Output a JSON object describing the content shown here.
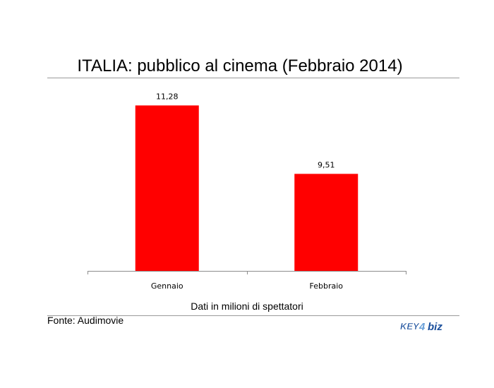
{
  "chart_data": {
    "type": "bar",
    "title": "ITALIA: pubblico al cinema (Febbraio 2014)",
    "categories": [
      "Gennaio",
      "Febbraio"
    ],
    "values": [
      11.28,
      9.51
    ],
    "data_labels": [
      "11,28",
      "9,51"
    ],
    "xlabel": "Dati in milioni di spettatori",
    "ylabel": "",
    "ylim": [
      7.0,
      12.0
    ],
    "grid": false,
    "legend": "none",
    "bar_color": "#ff0000"
  },
  "footer": {
    "source": "Fonte: Audimovie",
    "logo_text": "KEY4biz",
    "logo_colors": [
      "#1b4f9c",
      "#6aa0d8"
    ]
  }
}
